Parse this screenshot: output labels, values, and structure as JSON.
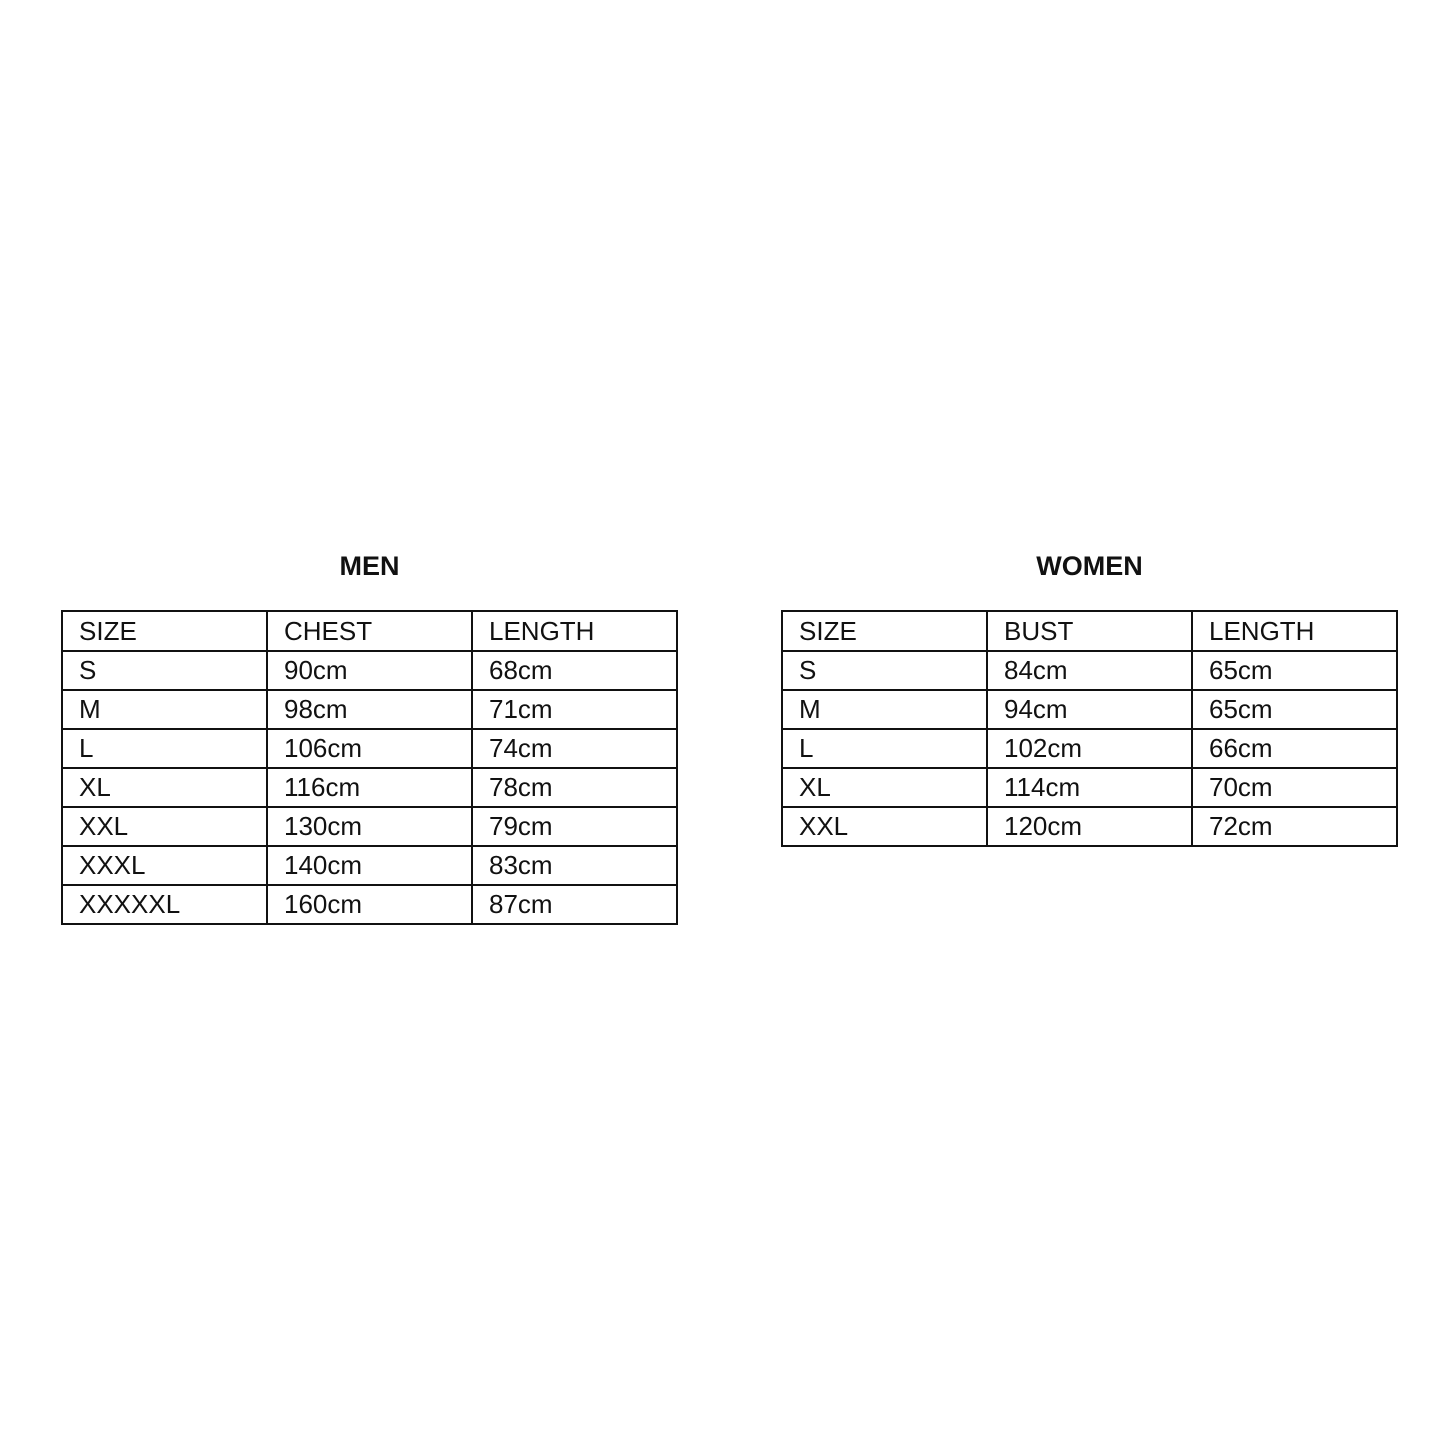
{
  "men": {
    "title": "MEN",
    "headers": [
      "SIZE",
      "CHEST",
      "LENGTH"
    ],
    "rows": [
      [
        "S",
        "90cm",
        "68cm"
      ],
      [
        "M",
        "98cm",
        "71cm"
      ],
      [
        "L",
        "106cm",
        "74cm"
      ],
      [
        "XL",
        "116cm",
        "78cm"
      ],
      [
        "XXL",
        "130cm",
        "79cm"
      ],
      [
        "XXXL",
        "140cm",
        "83cm"
      ],
      [
        "XXXXXL",
        "160cm",
        "87cm"
      ]
    ]
  },
  "women": {
    "title": "WOMEN",
    "headers": [
      "SIZE",
      "BUST",
      "LENGTH"
    ],
    "rows": [
      [
        "S",
        "84cm",
        "65cm"
      ],
      [
        "M",
        "94cm",
        "65cm"
      ],
      [
        "L",
        "102cm",
        "66cm"
      ],
      [
        "XL",
        "114cm",
        "70cm"
      ],
      [
        "XXL",
        "120cm",
        "72cm"
      ]
    ]
  }
}
